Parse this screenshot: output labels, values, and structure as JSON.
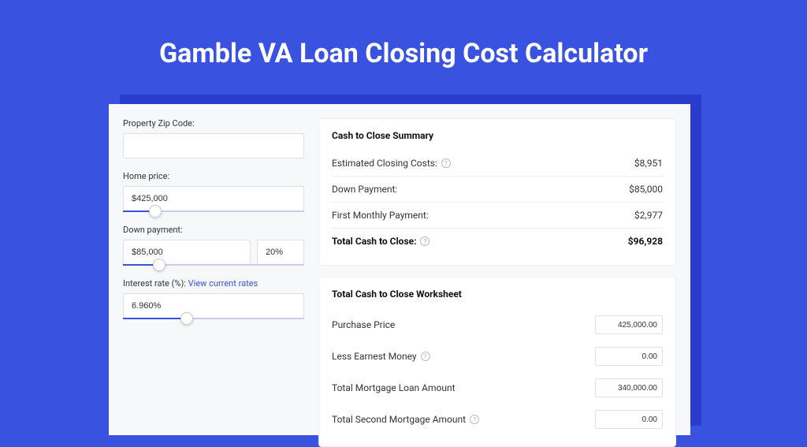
{
  "page": {
    "title": "Gamble VA Loan Closing Cost Calculator",
    "background_color": "#3a52e0",
    "shadow_color": "#2a3ccc",
    "card_bg": "#f7f8fa"
  },
  "form": {
    "zip_label": "Property Zip Code:",
    "zip_value": "",
    "home_price_label": "Home price:",
    "home_price_value": "$425,000",
    "home_price_slider_pct": 18,
    "down_payment_label": "Down payment:",
    "down_payment_value": "$85,000",
    "down_payment_pct": "20%",
    "down_payment_slider_pct": 20,
    "interest_label": "Interest rate (%):",
    "interest_link": "View current rates",
    "interest_value": "6.960%",
    "interest_slider_pct": 35
  },
  "summary": {
    "title": "Cash to Close Summary",
    "rows": [
      {
        "label": "Estimated Closing Costs:",
        "help": true,
        "value": "$8,951"
      },
      {
        "label": "Down Payment:",
        "help": false,
        "value": "$85,000"
      },
      {
        "label": "First Monthly Payment:",
        "help": false,
        "value": "$2,977"
      }
    ],
    "total_label": "Total Cash to Close:",
    "total_help": true,
    "total_value": "$96,928"
  },
  "worksheet": {
    "title": "Total Cash to Close Worksheet",
    "rows": [
      {
        "label": "Purchase Price",
        "help": false,
        "value": "425,000.00"
      },
      {
        "label": "Less Earnest Money",
        "help": true,
        "value": "0.00"
      },
      {
        "label": "Total Mortgage Loan Amount",
        "help": false,
        "value": "340,000.00"
      },
      {
        "label": "Total Second Mortgage Amount",
        "help": true,
        "value": "0.00"
      }
    ]
  }
}
